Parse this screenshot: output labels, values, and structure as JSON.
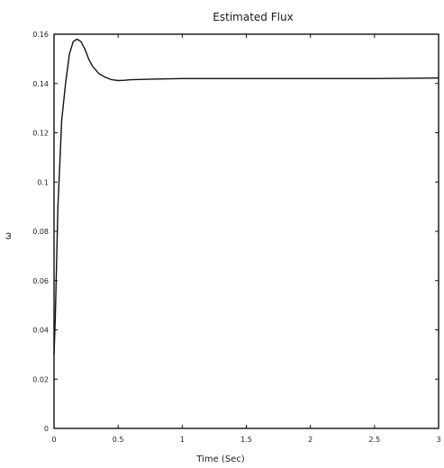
{
  "chart_data": {
    "type": "line",
    "title": "Estimated Flux",
    "xlabel": "Time (Sec)",
    "ylabel": "ω",
    "xlim": [
      0,
      3
    ],
    "ylim": [
      0,
      0.16
    ],
    "x_ticks": [
      0,
      0.5,
      1,
      1.5,
      2,
      2.5,
      3
    ],
    "x_tick_labels": [
      "0",
      "0.5",
      "1",
      "1.5",
      "2",
      "2.5",
      "3"
    ],
    "y_ticks": [
      0,
      0.02,
      0.04,
      0.06,
      0.08,
      0.1,
      0.12,
      0.14,
      0.16
    ],
    "y_tick_labels": [
      "0",
      "0.02",
      "0.04",
      "0.06",
      "0.08",
      "0.1",
      "0.12",
      "0.14",
      "0.16"
    ],
    "grid": false,
    "legend": "none",
    "series": [
      {
        "x": [
          0,
          0.01,
          0.03,
          0.06,
          0.09,
          0.12,
          0.15,
          0.18,
          0.21,
          0.24,
          0.27,
          0.3,
          0.35,
          0.4,
          0.45,
          0.5,
          0.55,
          0.6,
          0.8,
          1.0,
          1.5,
          2.0,
          2.5,
          3.0
        ],
        "y": [
          0.03,
          0.045,
          0.09,
          0.125,
          0.14,
          0.152,
          0.157,
          0.158,
          0.157,
          0.154,
          0.15,
          0.147,
          0.144,
          0.1425,
          0.1415,
          0.1412,
          0.1413,
          0.1415,
          0.1418,
          0.142,
          0.142,
          0.142,
          0.142,
          0.1422
        ]
      }
    ]
  }
}
